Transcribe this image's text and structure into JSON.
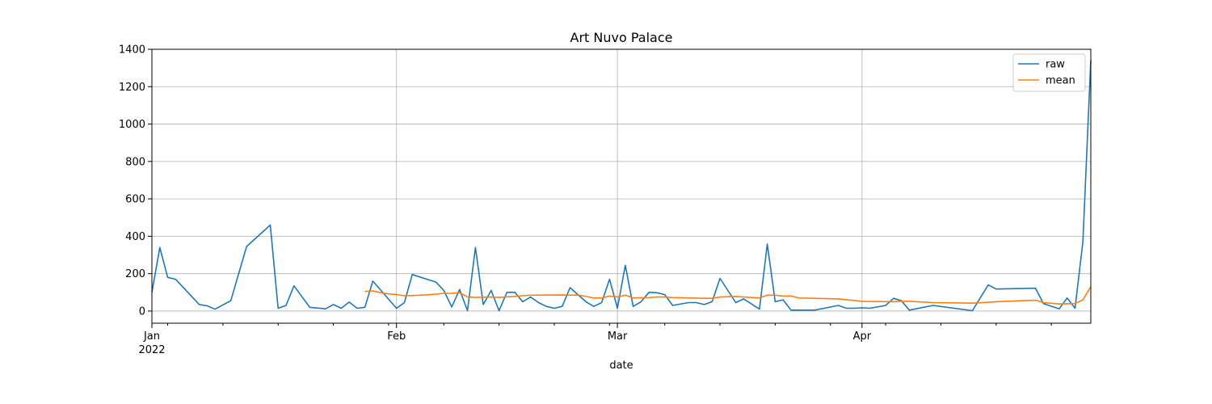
{
  "chart_data": {
    "type": "line",
    "title": "Art Nuvo Palace",
    "xlabel": "date",
    "ylabel": "",
    "x_range": [
      "2022-01-01",
      "2022-04-30"
    ],
    "ylim": [
      -65,
      1400
    ],
    "y_ticks": [
      0,
      200,
      400,
      600,
      800,
      1000,
      1200,
      1400
    ],
    "x_major_ticks": [
      {
        "date": "2022-01-01",
        "label": "Jan",
        "sublabel": "2022"
      },
      {
        "date": "2022-02-01",
        "label": "Feb",
        "sublabel": ""
      },
      {
        "date": "2022-03-01",
        "label": "Mar",
        "sublabel": ""
      },
      {
        "date": "2022-04-01",
        "label": "Apr",
        "sublabel": ""
      }
    ],
    "x_minor_ticks": [
      "2022-01-03",
      "2022-01-10",
      "2022-01-17",
      "2022-01-24",
      "2022-01-31",
      "2022-02-07",
      "2022-02-14",
      "2022-02-21",
      "2022-02-28",
      "2022-03-07",
      "2022-03-14",
      "2022-03-21",
      "2022-03-28",
      "2022-04-04",
      "2022-04-11",
      "2022-04-18",
      "2022-04-25"
    ],
    "grid": true,
    "legend": "top-right",
    "series": [
      {
        "name": "raw",
        "color": "#1f77b4",
        "points": [
          [
            "2022-01-01",
            100
          ],
          [
            "2022-01-02",
            340
          ],
          [
            "2022-01-03",
            180
          ],
          [
            "2022-01-04",
            170
          ],
          [
            "2022-01-07",
            35
          ],
          [
            "2022-01-08",
            28
          ],
          [
            "2022-01-09",
            10
          ],
          [
            "2022-01-11",
            55
          ],
          [
            "2022-01-13",
            345
          ],
          [
            "2022-01-16",
            460
          ],
          [
            "2022-01-17",
            15
          ],
          [
            "2022-01-18",
            30
          ],
          [
            "2022-01-19",
            135
          ],
          [
            "2022-01-21",
            20
          ],
          [
            "2022-01-23",
            12
          ],
          [
            "2022-01-24",
            35
          ],
          [
            "2022-01-25",
            15
          ],
          [
            "2022-01-26",
            48
          ],
          [
            "2022-01-27",
            15
          ],
          [
            "2022-01-28",
            20
          ],
          [
            "2022-01-29",
            160
          ],
          [
            "2022-02-01",
            15
          ],
          [
            "2022-02-02",
            45
          ],
          [
            "2022-02-03",
            195
          ],
          [
            "2022-02-06",
            155
          ],
          [
            "2022-02-07",
            110
          ],
          [
            "2022-02-08",
            22
          ],
          [
            "2022-02-09",
            115
          ],
          [
            "2022-02-10",
            2
          ],
          [
            "2022-02-11",
            340
          ],
          [
            "2022-02-12",
            35
          ],
          [
            "2022-02-13",
            110
          ],
          [
            "2022-02-14",
            2
          ],
          [
            "2022-02-15",
            100
          ],
          [
            "2022-02-16",
            100
          ],
          [
            "2022-02-17",
            50
          ],
          [
            "2022-02-18",
            75
          ],
          [
            "2022-02-19",
            45
          ],
          [
            "2022-02-20",
            25
          ],
          [
            "2022-02-21",
            15
          ],
          [
            "2022-02-22",
            25
          ],
          [
            "2022-02-23",
            125
          ],
          [
            "2022-02-25",
            50
          ],
          [
            "2022-02-26",
            25
          ],
          [
            "2022-02-27",
            45
          ],
          [
            "2022-02-28",
            170
          ],
          [
            "2022-03-01",
            15
          ],
          [
            "2022-03-02",
            245
          ],
          [
            "2022-03-03",
            25
          ],
          [
            "2022-03-04",
            50
          ],
          [
            "2022-03-05",
            100
          ],
          [
            "2022-03-06",
            98
          ],
          [
            "2022-03-07",
            88
          ],
          [
            "2022-03-08",
            30
          ],
          [
            "2022-03-10",
            45
          ],
          [
            "2022-03-11",
            45
          ],
          [
            "2022-03-12",
            35
          ],
          [
            "2022-03-13",
            50
          ],
          [
            "2022-03-14",
            175
          ],
          [
            "2022-03-16",
            45
          ],
          [
            "2022-03-17",
            65
          ],
          [
            "2022-03-19",
            10
          ],
          [
            "2022-03-20",
            358
          ],
          [
            "2022-03-21",
            50
          ],
          [
            "2022-03-22",
            60
          ],
          [
            "2022-03-23",
            5
          ],
          [
            "2022-03-26",
            5
          ],
          [
            "2022-03-29",
            30
          ],
          [
            "2022-03-30",
            15
          ],
          [
            "2022-03-31",
            15
          ],
          [
            "2022-04-01",
            17
          ],
          [
            "2022-04-02",
            15
          ],
          [
            "2022-04-04",
            30
          ],
          [
            "2022-04-05",
            68
          ],
          [
            "2022-04-06",
            55
          ],
          [
            "2022-04-07",
            5
          ],
          [
            "2022-04-10",
            30
          ],
          [
            "2022-04-15",
            2
          ],
          [
            "2022-04-17",
            140
          ],
          [
            "2022-04-18",
            118
          ],
          [
            "2022-04-23",
            122
          ],
          [
            "2022-04-24",
            40
          ],
          [
            "2022-04-26",
            12
          ],
          [
            "2022-04-27",
            70
          ],
          [
            "2022-04-28",
            15
          ],
          [
            "2022-04-29",
            370
          ],
          [
            "2022-04-30",
            1340
          ]
        ]
      },
      {
        "name": "mean",
        "color": "#ff7f0e",
        "points": [
          [
            "2022-01-28",
            105
          ],
          [
            "2022-01-29",
            108
          ],
          [
            "2022-01-30",
            98
          ],
          [
            "2022-01-31",
            92
          ],
          [
            "2022-02-01",
            88
          ],
          [
            "2022-02-02",
            82
          ],
          [
            "2022-02-03",
            83
          ],
          [
            "2022-02-05",
            87
          ],
          [
            "2022-02-06",
            90
          ],
          [
            "2022-02-07",
            95
          ],
          [
            "2022-02-08",
            95
          ],
          [
            "2022-02-09",
            98
          ],
          [
            "2022-02-10",
            75
          ],
          [
            "2022-02-11",
            73
          ],
          [
            "2022-02-13",
            75
          ],
          [
            "2022-02-14",
            73
          ],
          [
            "2022-02-16",
            78
          ],
          [
            "2022-02-17",
            82
          ],
          [
            "2022-02-18",
            85
          ],
          [
            "2022-02-22",
            86
          ],
          [
            "2022-02-23",
            85
          ],
          [
            "2022-02-24",
            86
          ],
          [
            "2022-02-25",
            78
          ],
          [
            "2022-02-26",
            70
          ],
          [
            "2022-02-27",
            70
          ],
          [
            "2022-02-28",
            80
          ],
          [
            "2022-03-01",
            75
          ],
          [
            "2022-03-02",
            85
          ],
          [
            "2022-03-03",
            70
          ],
          [
            "2022-03-05",
            72
          ],
          [
            "2022-03-06",
            75
          ],
          [
            "2022-03-07",
            75
          ],
          [
            "2022-03-08",
            72
          ],
          [
            "2022-03-12",
            68
          ],
          [
            "2022-03-13",
            68
          ],
          [
            "2022-03-14",
            75
          ],
          [
            "2022-03-16",
            78
          ],
          [
            "2022-03-17",
            75
          ],
          [
            "2022-03-19",
            70
          ],
          [
            "2022-03-20",
            85
          ],
          [
            "2022-03-21",
            85
          ],
          [
            "2022-03-22",
            80
          ],
          [
            "2022-03-23",
            80
          ],
          [
            "2022-03-24",
            70
          ],
          [
            "2022-03-29",
            65
          ],
          [
            "2022-03-31",
            57
          ],
          [
            "2022-04-01",
            52
          ],
          [
            "2022-04-05",
            50
          ],
          [
            "2022-04-06",
            52
          ],
          [
            "2022-04-07",
            52
          ],
          [
            "2022-04-10",
            45
          ],
          [
            "2022-04-15",
            42
          ],
          [
            "2022-04-17",
            47
          ],
          [
            "2022-04-18",
            50
          ],
          [
            "2022-04-23",
            58
          ],
          [
            "2022-04-24",
            45
          ],
          [
            "2022-04-26",
            38
          ],
          [
            "2022-04-28",
            40
          ],
          [
            "2022-04-29",
            60
          ],
          [
            "2022-04-30",
            130
          ]
        ]
      }
    ]
  }
}
